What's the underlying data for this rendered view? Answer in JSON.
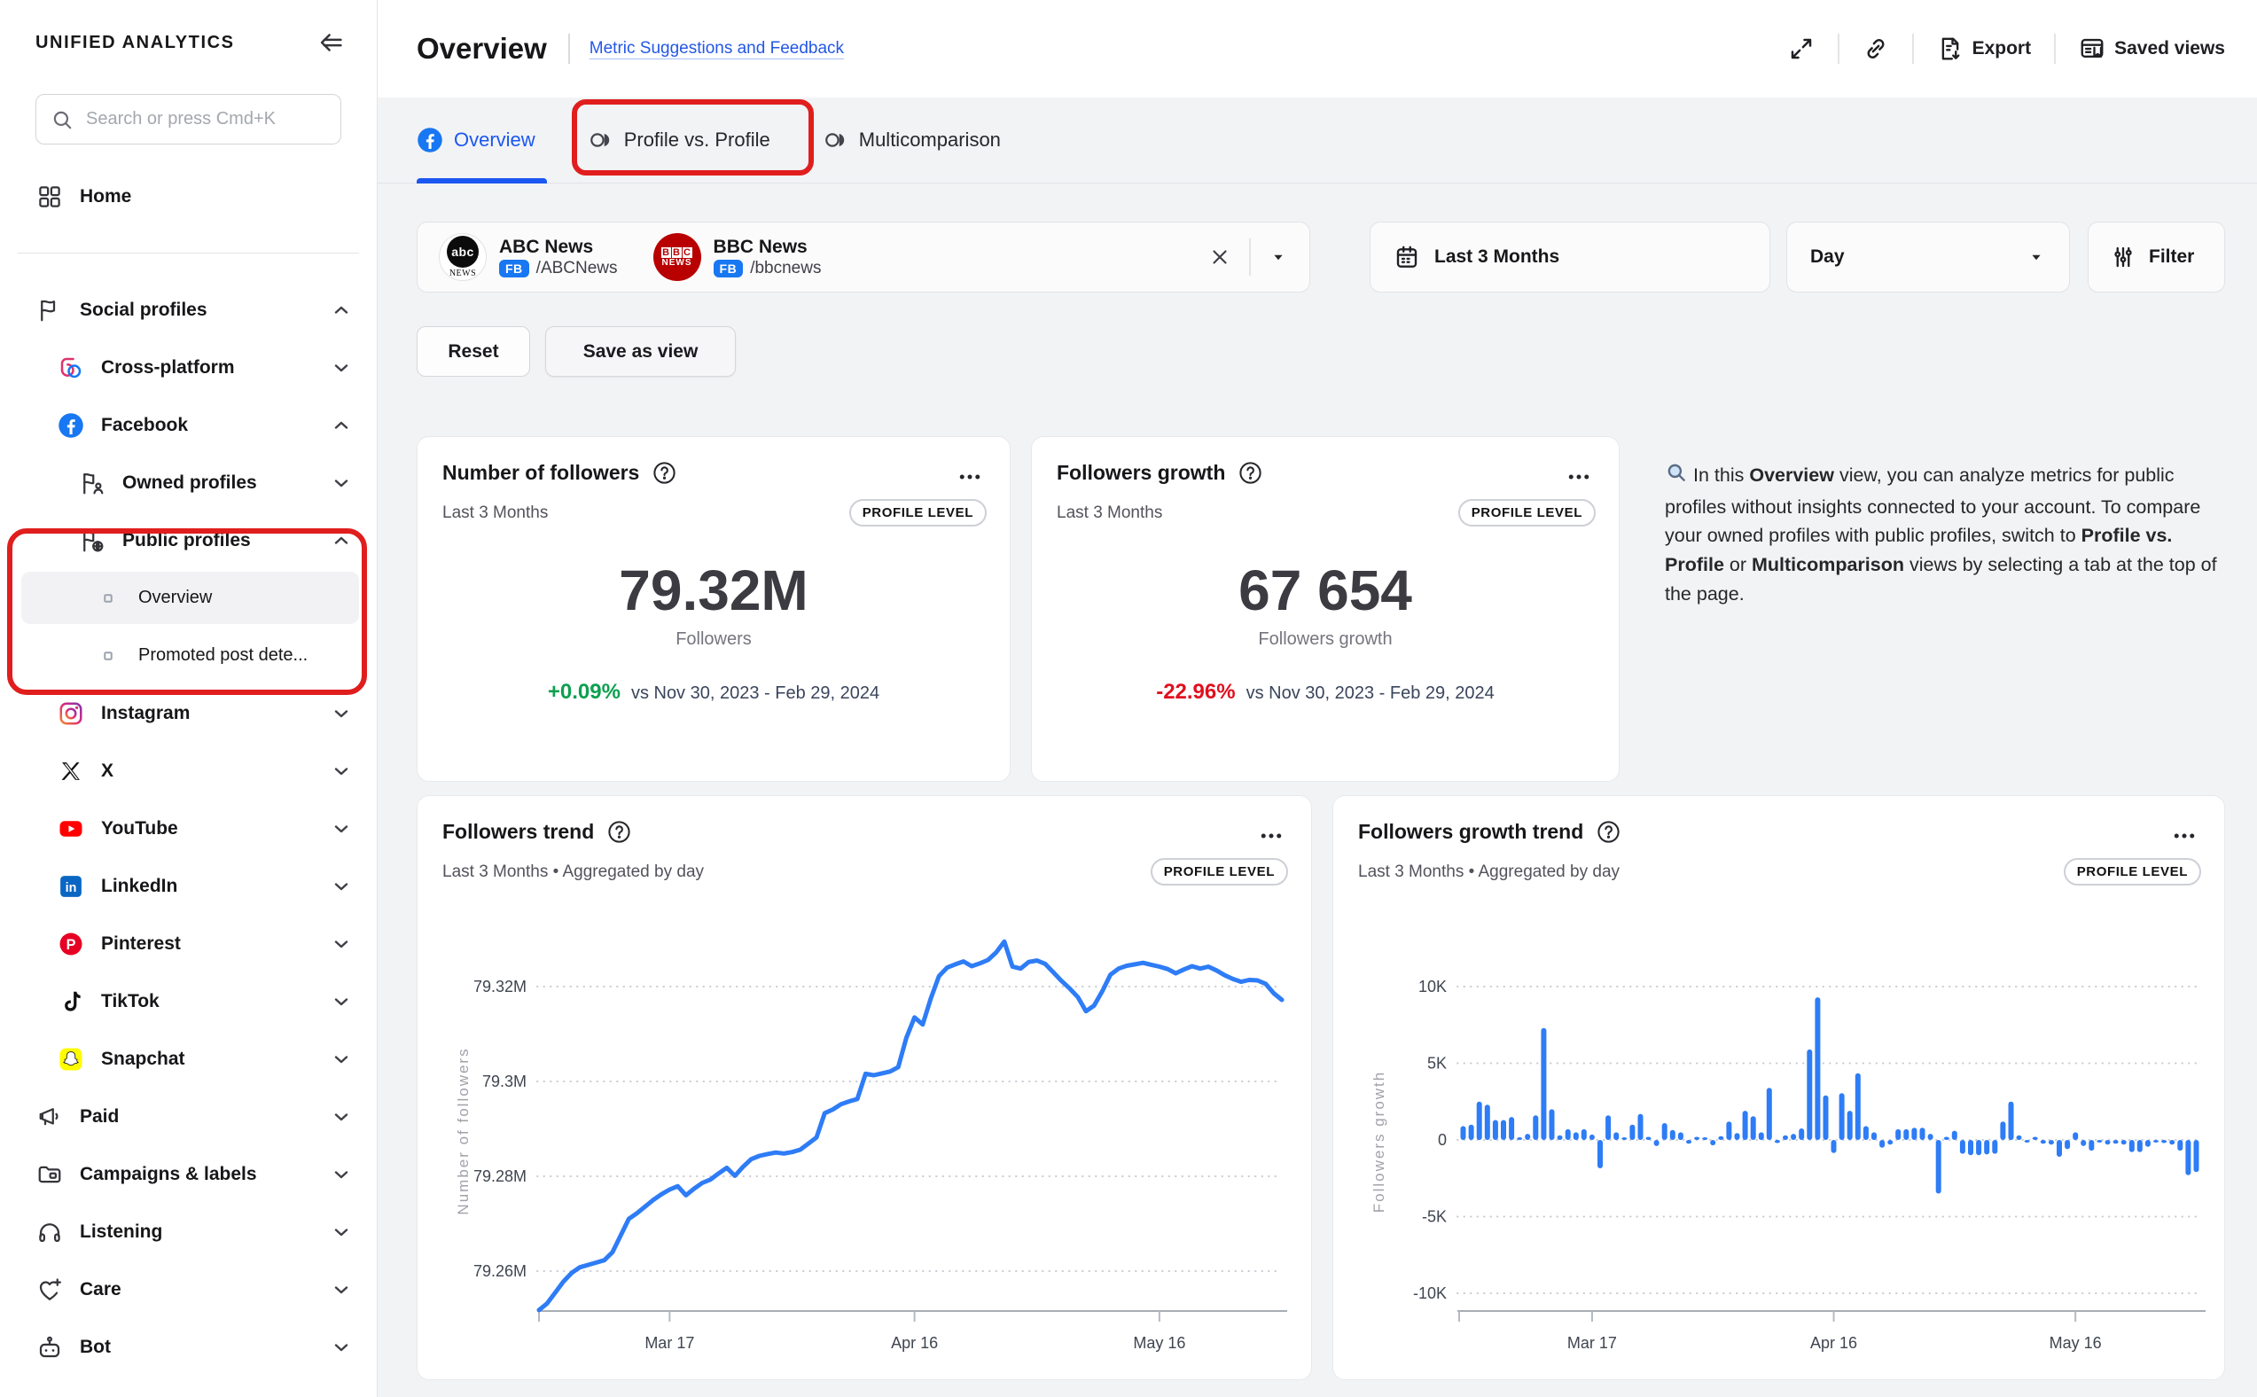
{
  "sidebar": {
    "logo": "UNIFIED ANALYTICS",
    "search": {
      "placeholder": "Search or press Cmd+K"
    },
    "items": [
      {
        "id": "home",
        "label": "Home",
        "icon": "home",
        "level": 0
      },
      {
        "divider": true
      },
      {
        "id": "social-profiles",
        "label": "Social profiles",
        "icon": "flag",
        "level": 0,
        "chevron": "up"
      },
      {
        "id": "cross-platform",
        "label": "Cross-platform",
        "icon": "cross-platform",
        "level": 1,
        "chevron": "down"
      },
      {
        "id": "facebook",
        "label": "Facebook",
        "icon": "facebook",
        "level": 1,
        "chevron": "up"
      },
      {
        "id": "owned-profiles",
        "label": "Owned profiles",
        "icon": "flag-user",
        "level": 2,
        "chevron": "down"
      },
      {
        "id": "public-profiles",
        "label": "Public profiles",
        "icon": "flag-globe",
        "level": 2,
        "chevron": "up"
      },
      {
        "id": "overview",
        "label": "Overview",
        "icon": "bullet",
        "level": 3,
        "active": true,
        "sub": true
      },
      {
        "id": "promoted-post-detail",
        "label": "Promoted post dete...",
        "icon": "bullet",
        "level": 3,
        "sub": true
      },
      {
        "id": "instagram",
        "label": "Instagram",
        "icon": "instagram",
        "level": 1,
        "chevron": "down"
      },
      {
        "id": "x",
        "label": "X",
        "icon": "x-logo",
        "level": 1,
        "chevron": "down"
      },
      {
        "id": "youtube",
        "label": "YouTube",
        "icon": "youtube",
        "level": 1,
        "chevron": "down"
      },
      {
        "id": "linkedin",
        "label": "LinkedIn",
        "icon": "linkedin",
        "level": 1,
        "chevron": "down"
      },
      {
        "id": "pinterest",
        "label": "Pinterest",
        "icon": "pinterest",
        "level": 1,
        "chevron": "down"
      },
      {
        "id": "tiktok",
        "label": "TikTok",
        "icon": "tiktok",
        "level": 1,
        "chevron": "down"
      },
      {
        "id": "snapchat",
        "label": "Snapchat",
        "icon": "snapchat",
        "level": 1,
        "chevron": "down"
      },
      {
        "id": "paid",
        "label": "Paid",
        "icon": "megaphone",
        "level": 0,
        "chevron": "down"
      },
      {
        "id": "campaigns-labels",
        "label": "Campaigns & labels",
        "icon": "folder",
        "level": 0,
        "chevron": "down"
      },
      {
        "id": "listening",
        "label": "Listening",
        "icon": "headphones",
        "level": 0,
        "chevron": "down"
      },
      {
        "id": "care",
        "label": "Care",
        "icon": "heart-plus",
        "level": 0,
        "chevron": "down"
      },
      {
        "id": "bot",
        "label": "Bot",
        "icon": "robot",
        "level": 0,
        "chevron": "down"
      }
    ]
  },
  "header": {
    "title": "Overview",
    "feedback_link": "Metric Suggestions and Feedback",
    "export_label": "Export",
    "saved_views_label": "Saved views"
  },
  "tabs": [
    {
      "id": "overview",
      "label": "Overview",
      "icon": "facebook",
      "active": true
    },
    {
      "id": "profile-vs-profile",
      "label": "Profile vs. Profile",
      "icon": "compare",
      "active": false
    },
    {
      "id": "multicomparison",
      "label": "Multicomparison",
      "icon": "compare",
      "active": false
    }
  ],
  "filter_bar": {
    "profiles": [
      {
        "name": "ABC News",
        "network": "FB",
        "handle": "/ABCNews",
        "avatar": "abc"
      },
      {
        "name": "BBC News",
        "network": "FB",
        "handle": "/bbcnews",
        "avatar": "bbc"
      }
    ],
    "date_range": "Last 3 Months",
    "granularity": "Day",
    "filter_label": "Filter"
  },
  "actions": {
    "reset": "Reset",
    "save_as_view": "Save as view"
  },
  "kpi_cards": [
    {
      "title": "Number of followers",
      "period": "Last 3 Months",
      "badge": "PROFILE LEVEL",
      "value": "79.32M",
      "value_label": "Followers",
      "delta": "+0.09%",
      "delta_positive": true,
      "compare": "vs Nov 30, 2023 - Feb 29, 2024"
    },
    {
      "title": "Followers growth",
      "period": "Last 3 Months",
      "badge": "PROFILE LEVEL",
      "value": "67 654",
      "value_label": "Followers growth",
      "delta": "-22.96%",
      "delta_positive": false,
      "compare": "vs Nov 30, 2023 - Feb 29, 2024"
    }
  ],
  "info_panel": {
    "segments": [
      {
        "text": "In this ",
        "bold": false
      },
      {
        "text": "Overview",
        "bold": true
      },
      {
        "text": " view, you can analyze metrics for public profiles without insights connected to your account. To compare your owned profiles with public profiles, switch to ",
        "bold": false
      },
      {
        "text": "Profile vs. Profile",
        "bold": true
      },
      {
        "text": " or ",
        "bold": false
      },
      {
        "text": "Multicomparison",
        "bold": true
      },
      {
        "text": " views by selecting a tab at the top of the page.",
        "bold": false
      }
    ]
  },
  "chart_data": [
    {
      "type": "line",
      "title": "Followers trend",
      "subtitle": "Last 3 Months • Aggregated by day",
      "badge": "PROFILE LEVEL",
      "ylabel": "Number of followers",
      "x_tick_labels": [
        "Mar 17",
        "Apr 16",
        "May 16"
      ],
      "x_tick_day_index": [
        16,
        46,
        76
      ],
      "y_ticks": [
        {
          "label": "79.32M",
          "value": 79.32
        },
        {
          "label": "79.3M",
          "value": 79.3
        },
        {
          "label": "79.28M",
          "value": 79.28
        },
        {
          "label": "79.26M",
          "value": 79.26
        }
      ],
      "ylim": [
        79.2515,
        79.3315
      ],
      "line_color": "#2e7cf6",
      "values_millions": [
        79.2518,
        79.2532,
        79.2555,
        79.2578,
        79.2596,
        79.2608,
        79.2613,
        79.2618,
        79.2623,
        79.264,
        79.2675,
        79.271,
        79.2722,
        79.2736,
        79.275,
        79.2762,
        79.2772,
        79.2779,
        79.276,
        79.2774,
        79.2786,
        79.2793,
        79.2806,
        79.2818,
        79.2801,
        79.282,
        79.2836,
        79.2843,
        79.2847,
        79.285,
        79.2848,
        79.2851,
        79.2856,
        79.2869,
        79.2882,
        79.2933,
        79.2941,
        79.2952,
        79.2958,
        79.2963,
        79.3016,
        79.3013,
        79.3017,
        79.3021,
        79.303,
        79.3092,
        79.3135,
        79.312,
        79.3175,
        79.3222,
        79.324,
        79.3247,
        79.3253,
        79.3243,
        79.3249,
        79.3256,
        79.3272,
        79.3295,
        79.3242,
        79.3238,
        79.3252,
        79.3255,
        79.3248,
        79.323,
        79.3212,
        79.3196,
        79.3178,
        79.3148,
        79.316,
        79.319,
        79.3225,
        79.3238,
        79.3244,
        79.3247,
        79.325,
        79.3246,
        79.3242,
        79.3237,
        79.3228,
        79.3236,
        79.3243,
        79.3238,
        79.3242,
        79.3234,
        79.3224,
        79.3216,
        79.321,
        79.3214,
        79.3213,
        79.3206,
        79.3186,
        79.3172
      ]
    },
    {
      "type": "bar",
      "title": "Followers growth trend",
      "subtitle": "Last 3 Months • Aggregated by day",
      "badge": "PROFILE LEVEL",
      "ylabel": "Followers growth",
      "x_tick_labels": [
        "Mar 17",
        "Apr 16",
        "May 16"
      ],
      "x_tick_day_index": [
        16,
        46,
        76
      ],
      "y_ticks": [
        {
          "label": "10K",
          "value": 10000
        },
        {
          "label": "5K",
          "value": 5000
        },
        {
          "label": "0",
          "value": 0
        },
        {
          "label": "-5K",
          "value": -5000
        },
        {
          "label": "-10K",
          "value": -10000
        }
      ],
      "ylim": [
        -11000,
        11000
      ],
      "bar_color": "#2e7cf6",
      "values": [
        900,
        1000,
        2500,
        2300,
        1300,
        1300,
        1500,
        150,
        400,
        1600,
        7300,
        2000,
        300,
        700,
        500,
        700,
        350,
        -1850,
        1600,
        500,
        150,
        1000,
        1700,
        200,
        -400,
        1100,
        650,
        500,
        -250,
        200,
        150,
        -350,
        250,
        1200,
        450,
        1900,
        1550,
        500,
        3400,
        -200,
        300,
        400,
        750,
        5900,
        9300,
        2900,
        -850,
        3050,
        1900,
        4350,
        900,
        500,
        -500,
        -300,
        700,
        700,
        800,
        800,
        400,
        -3500,
        200,
        600,
        -900,
        -1000,
        -1000,
        -950,
        -900,
        1200,
        2500,
        300,
        -150,
        200,
        -250,
        -300,
        -1100,
        -600,
        500,
        -400,
        -700,
        -150,
        -300,
        -250,
        -300,
        -800,
        -800,
        -450,
        -150,
        -200,
        -300,
        -700,
        -2300,
        -2100
      ]
    }
  ],
  "colors": {
    "accent_blue": "#1b57f0",
    "facebook_blue": "#1877f2",
    "chart_blue": "#2e7cf6",
    "positive_green": "#0da04f",
    "negative_red": "#e0101f",
    "annotation_red": "#e01e1e"
  }
}
